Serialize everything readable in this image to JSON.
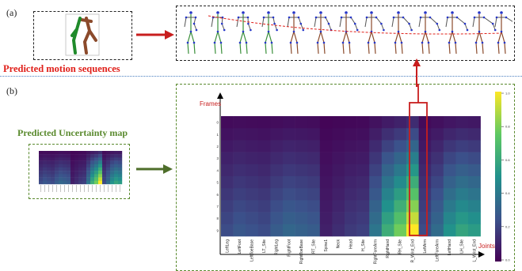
{
  "panel_a": {
    "label": "(a)",
    "title": "Predicted motion sequences"
  },
  "panel_b": {
    "label": "(b)",
    "title": "Predicted Uncertainty map"
  },
  "heatmap": {
    "y_axis_title": "Frames",
    "x_axis_title": "Joints",
    "frames": [
      "0",
      "1",
      "2",
      "3",
      "4",
      "5",
      "6",
      "7",
      "8",
      "9"
    ],
    "joints": [
      "LeftLeg",
      "LeftFoot",
      "LeftToeBase",
      "LT_Site",
      "RightLeg",
      "RightFoot",
      "RightToeBase",
      "RT_Site",
      "Spine1",
      "Neck",
      "Head",
      "H_Site",
      "RightForeArm",
      "RightHand",
      "RH_Site",
      "R_Wrist_End",
      "LeftArm",
      "LeftForeArm",
      "LeftHand",
      "LH_Site",
      "L_Wrist_End"
    ],
    "colorbar_ticks": [
      "1.0",
      "0.8",
      "0.6",
      "0.4",
      "0.2",
      "0.0"
    ],
    "highlighted_joint": "R_Wrist_End"
  },
  "colors": {
    "accent_red": "#c81e1e",
    "accent_green": "#4e6e2a"
  }
}
